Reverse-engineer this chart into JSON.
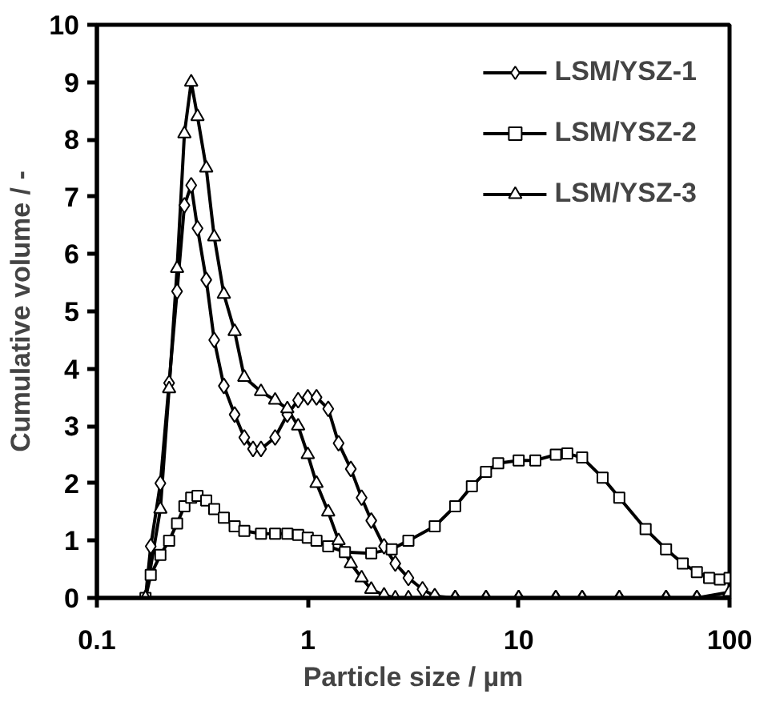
{
  "chart_data": {
    "type": "line",
    "xlabel": "Particle size / µm",
    "ylabel": "Cumulative volume / -",
    "log": "x",
    "xlim": [
      0.1,
      100
    ],
    "xticks": [
      0.1,
      1,
      10,
      100
    ],
    "ylim": [
      0,
      10
    ],
    "yticks": [
      0,
      1,
      2,
      3,
      4,
      5,
      6,
      7,
      8,
      9,
      10
    ],
    "grid": false,
    "legend": "top right",
    "line_style": "solid",
    "series": [
      {
        "name": "LSM/YSZ-1",
        "color": "#000000",
        "marker": "diamond",
        "x": [
          0.17,
          0.18,
          0.2,
          0.22,
          0.24,
          0.26,
          0.28,
          0.3,
          0.33,
          0.36,
          0.4,
          0.45,
          0.5,
          0.55,
          0.6,
          0.7,
          0.8,
          0.9,
          1.0,
          1.1,
          1.25,
          1.4,
          1.6,
          1.8,
          2.0,
          2.3,
          2.6,
          3.0,
          3.5,
          4.0,
          5,
          7,
          10,
          15,
          20,
          30,
          50,
          70,
          100
        ],
        "values": [
          0,
          0.9,
          2.0,
          3.75,
          5.35,
          6.85,
          7.2,
          6.45,
          5.55,
          4.5,
          3.7,
          3.2,
          2.8,
          2.6,
          2.6,
          2.8,
          3.2,
          3.45,
          3.5,
          3.5,
          3.3,
          2.7,
          2.25,
          1.75,
          1.35,
          0.9,
          0.6,
          0.35,
          0.15,
          0.03,
          0,
          0,
          0,
          0,
          0,
          0,
          0,
          0,
          0
        ]
      },
      {
        "name": "LSM/YSZ-2",
        "color": "#000000",
        "marker": "square",
        "x": [
          0.17,
          0.18,
          0.2,
          0.22,
          0.24,
          0.26,
          0.28,
          0.3,
          0.33,
          0.36,
          0.4,
          0.45,
          0.5,
          0.6,
          0.7,
          0.8,
          0.9,
          1.0,
          1.1,
          1.25,
          1.5,
          2.0,
          2.5,
          3,
          4,
          5,
          6,
          7,
          8,
          10,
          12,
          15,
          17,
          20,
          25,
          30,
          40,
          50,
          60,
          70,
          80,
          90,
          100
        ],
        "values": [
          0,
          0.4,
          0.75,
          1.0,
          1.3,
          1.6,
          1.75,
          1.78,
          1.7,
          1.55,
          1.4,
          1.25,
          1.17,
          1.12,
          1.12,
          1.12,
          1.1,
          1.05,
          1.0,
          0.9,
          0.8,
          0.78,
          0.85,
          1.0,
          1.25,
          1.6,
          1.95,
          2.2,
          2.35,
          2.4,
          2.4,
          2.5,
          2.52,
          2.45,
          2.1,
          1.75,
          1.2,
          0.85,
          0.6,
          0.45,
          0.35,
          0.32,
          0.35
        ]
      },
      {
        "name": "LSM/YSZ-3",
        "color": "#000000",
        "marker": "triangle",
        "x": [
          0.17,
          0.2,
          0.22,
          0.24,
          0.26,
          0.28,
          0.3,
          0.33,
          0.36,
          0.4,
          0.45,
          0.5,
          0.6,
          0.7,
          0.8,
          0.9,
          1.0,
          1.1,
          1.25,
          1.4,
          1.6,
          1.8,
          2.0,
          2.3,
          2.6,
          3,
          5,
          7,
          10,
          15,
          20,
          30,
          50,
          70,
          100
        ],
        "values": [
          0,
          1.55,
          3.65,
          5.75,
          8.1,
          9.0,
          8.4,
          7.5,
          6.3,
          5.3,
          4.65,
          3.85,
          3.6,
          3.45,
          3.3,
          3.0,
          2.5,
          2.0,
          1.5,
          1.0,
          0.6,
          0.35,
          0.15,
          0.05,
          0,
          0,
          0,
          0,
          0,
          0,
          0,
          0,
          0,
          0,
          0.1
        ]
      }
    ]
  }
}
